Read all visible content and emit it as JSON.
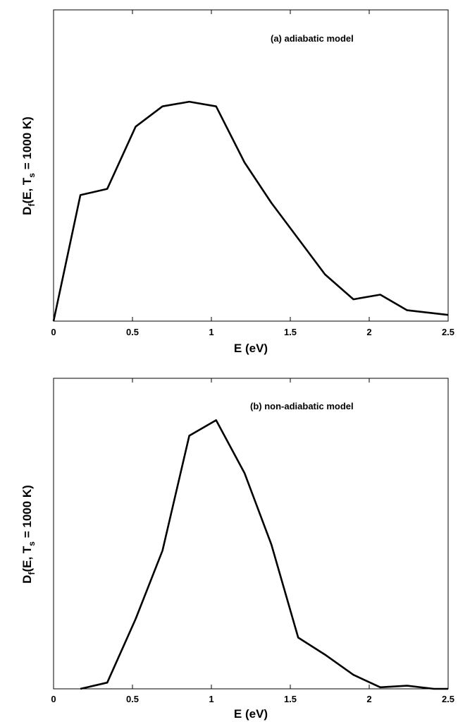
{
  "chart_data": [
    {
      "type": "line",
      "annotation": "(a) adiabatic model",
      "xlabel": "E (eV)",
      "ylabel": {
        "main": "D",
        "sub1": "f",
        "mid": "(E, T",
        "sub2": "s",
        "tail": " = 1000 K)"
      },
      "xlim": [
        0,
        2.5
      ],
      "ylim": [
        0,
        1
      ],
      "xticks": [
        "0",
        "0.5",
        "1",
        "1.5",
        "2",
        "2.5"
      ],
      "xtick_values": [
        0,
        0.5,
        1,
        1.5,
        2,
        2.5
      ],
      "y_tick_labels": false,
      "series": [
        {
          "x": [
            0,
            0.17,
            0.34,
            0.52,
            0.69,
            0.86,
            1.03,
            1.21,
            1.38,
            1.55,
            1.72,
            1.9,
            2.07,
            2.24,
            2.5
          ],
          "y": [
            0,
            0.405,
            0.425,
            0.625,
            0.69,
            0.705,
            0.69,
            0.51,
            0.38,
            0.265,
            0.15,
            0.07,
            0.085,
            0.035,
            0.02
          ]
        }
      ]
    },
    {
      "type": "line",
      "annotation": "(b) non-adiabatic model",
      "xlabel": "E (eV)",
      "ylabel": {
        "main": "D",
        "sub1": "f",
        "mid": "(E, T",
        "sub2": "s",
        "tail": " = 1000 K)"
      },
      "xlim": [
        0,
        2.5
      ],
      "ylim": [
        0,
        1
      ],
      "xticks": [
        "0",
        "0.5",
        "1",
        "1.5",
        "2",
        "2.5"
      ],
      "xtick_values": [
        0,
        0.5,
        1,
        1.5,
        2,
        2.5
      ],
      "y_tick_labels": false,
      "series": [
        {
          "x": [
            0.17,
            0.34,
            0.52,
            0.69,
            0.86,
            1.03,
            1.21,
            1.38,
            1.55,
            1.72,
            1.9,
            2.07,
            2.24,
            2.41,
            2.5
          ],
          "y": [
            0,
            0.02,
            0.225,
            0.445,
            0.815,
            0.865,
            0.695,
            0.465,
            0.165,
            0.11,
            0.045,
            0.005,
            0.01,
            0,
            0
          ]
        }
      ]
    }
  ]
}
